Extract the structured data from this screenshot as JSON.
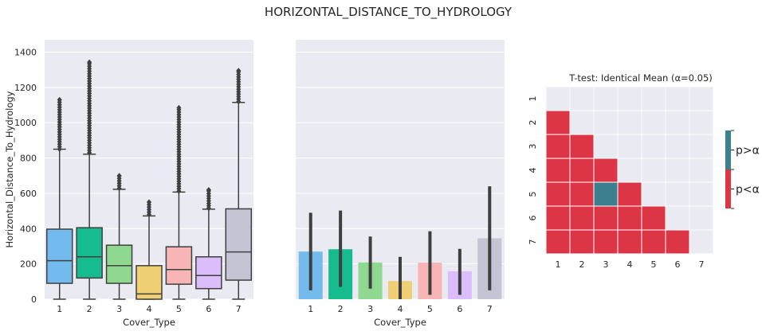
{
  "suptitle": "HORIZONTAL_DISTANCE_TO_HYDROLOGY",
  "colors": {
    "panel_bg": "#eaeaf2",
    "grid": "#ffffff",
    "significant": "#dc3545",
    "not_significant": "#3c7f8f",
    "categories": [
      "#74bbed",
      "#16bc8e",
      "#8fd88f",
      "#f1cf75",
      "#f7b5b5",
      "#dcbdfb",
      "#c4c4d4"
    ]
  },
  "chart_data": [
    {
      "type": "box",
      "xlabel": "Cover_Type",
      "ylabel": "Horizontal_Distance_To_Hydrology",
      "categories": [
        "1",
        "2",
        "3",
        "4",
        "5",
        "6",
        "7"
      ],
      "ylim": [
        0,
        1470
      ],
      "yticks": [
        0,
        200,
        400,
        600,
        800,
        1000,
        1200,
        1400
      ],
      "grid": true,
      "boxes": [
        {
          "min": 0,
          "q1": 90,
          "median": 218,
          "q3": 397,
          "whisker_high": 850,
          "outliers_from": 850,
          "outliers_max": 1130
        },
        {
          "min": 0,
          "q1": 120,
          "median": 240,
          "q3": 405,
          "whisker_high": 822,
          "outliers_from": 830,
          "outliers_max": 1343
        },
        {
          "min": 0,
          "q1": 90,
          "median": 190,
          "q3": 306,
          "whisker_high": 623,
          "outliers_from": 628,
          "outliers_max": 700
        },
        {
          "min": 0,
          "q1": 0,
          "median": 30,
          "q3": 190,
          "whisker_high": 472,
          "outliers_from": 480,
          "outliers_max": 550
        },
        {
          "min": 0,
          "q1": 85,
          "median": 168,
          "q3": 297,
          "whisker_high": 607,
          "outliers_from": 612,
          "outliers_max": 1085
        },
        {
          "min": 0,
          "q1": 60,
          "median": 134,
          "q3": 240,
          "whisker_high": 510,
          "outliers_from": 515,
          "outliers_max": 620
        },
        {
          "min": 0,
          "q1": 108,
          "median": 268,
          "q3": 512,
          "whisker_high": 1115,
          "outliers_from": 1120,
          "outliers_max": 1295
        }
      ]
    },
    {
      "type": "bar",
      "xlabel": "Cover_Type",
      "categories": [
        "1",
        "2",
        "3",
        "4",
        "5",
        "6",
        "7"
      ],
      "values": [
        270,
        283,
        208,
        103,
        207,
        158,
        345
      ],
      "error_low": [
        50,
        70,
        60,
        0,
        25,
        25,
        50
      ],
      "error_high": [
        490,
        502,
        355,
        240,
        385,
        285,
        640
      ],
      "ylim": [
        0,
        1470
      ],
      "shared_y": true,
      "grid": true
    },
    {
      "type": "heatmap",
      "title": "T-test: Identical Mean (α=0.05)",
      "x": [
        "1",
        "2",
        "3",
        "4",
        "5",
        "6",
        "7"
      ],
      "y": [
        "1",
        "2",
        "3",
        "4",
        "5",
        "6",
        "7"
      ],
      "lower_triangle": [
        {
          "row": "2",
          "values": [
            "p<α"
          ]
        },
        {
          "row": "3",
          "values": [
            "p<α",
            "p<α"
          ]
        },
        {
          "row": "4",
          "values": [
            "p<α",
            "p<α",
            "p<α"
          ]
        },
        {
          "row": "5",
          "values": [
            "p<α",
            "p<α",
            "p>α",
            "p<α"
          ]
        },
        {
          "row": "6",
          "values": [
            "p<α",
            "p<α",
            "p<α",
            "p<α",
            "p<α"
          ]
        },
        {
          "row": "7",
          "values": [
            "p<α",
            "p<α",
            "p<α",
            "p<α",
            "p<α",
            "p<α"
          ]
        }
      ],
      "legend": [
        "p>α",
        "p<α"
      ],
      "legend_placement": "right"
    }
  ]
}
